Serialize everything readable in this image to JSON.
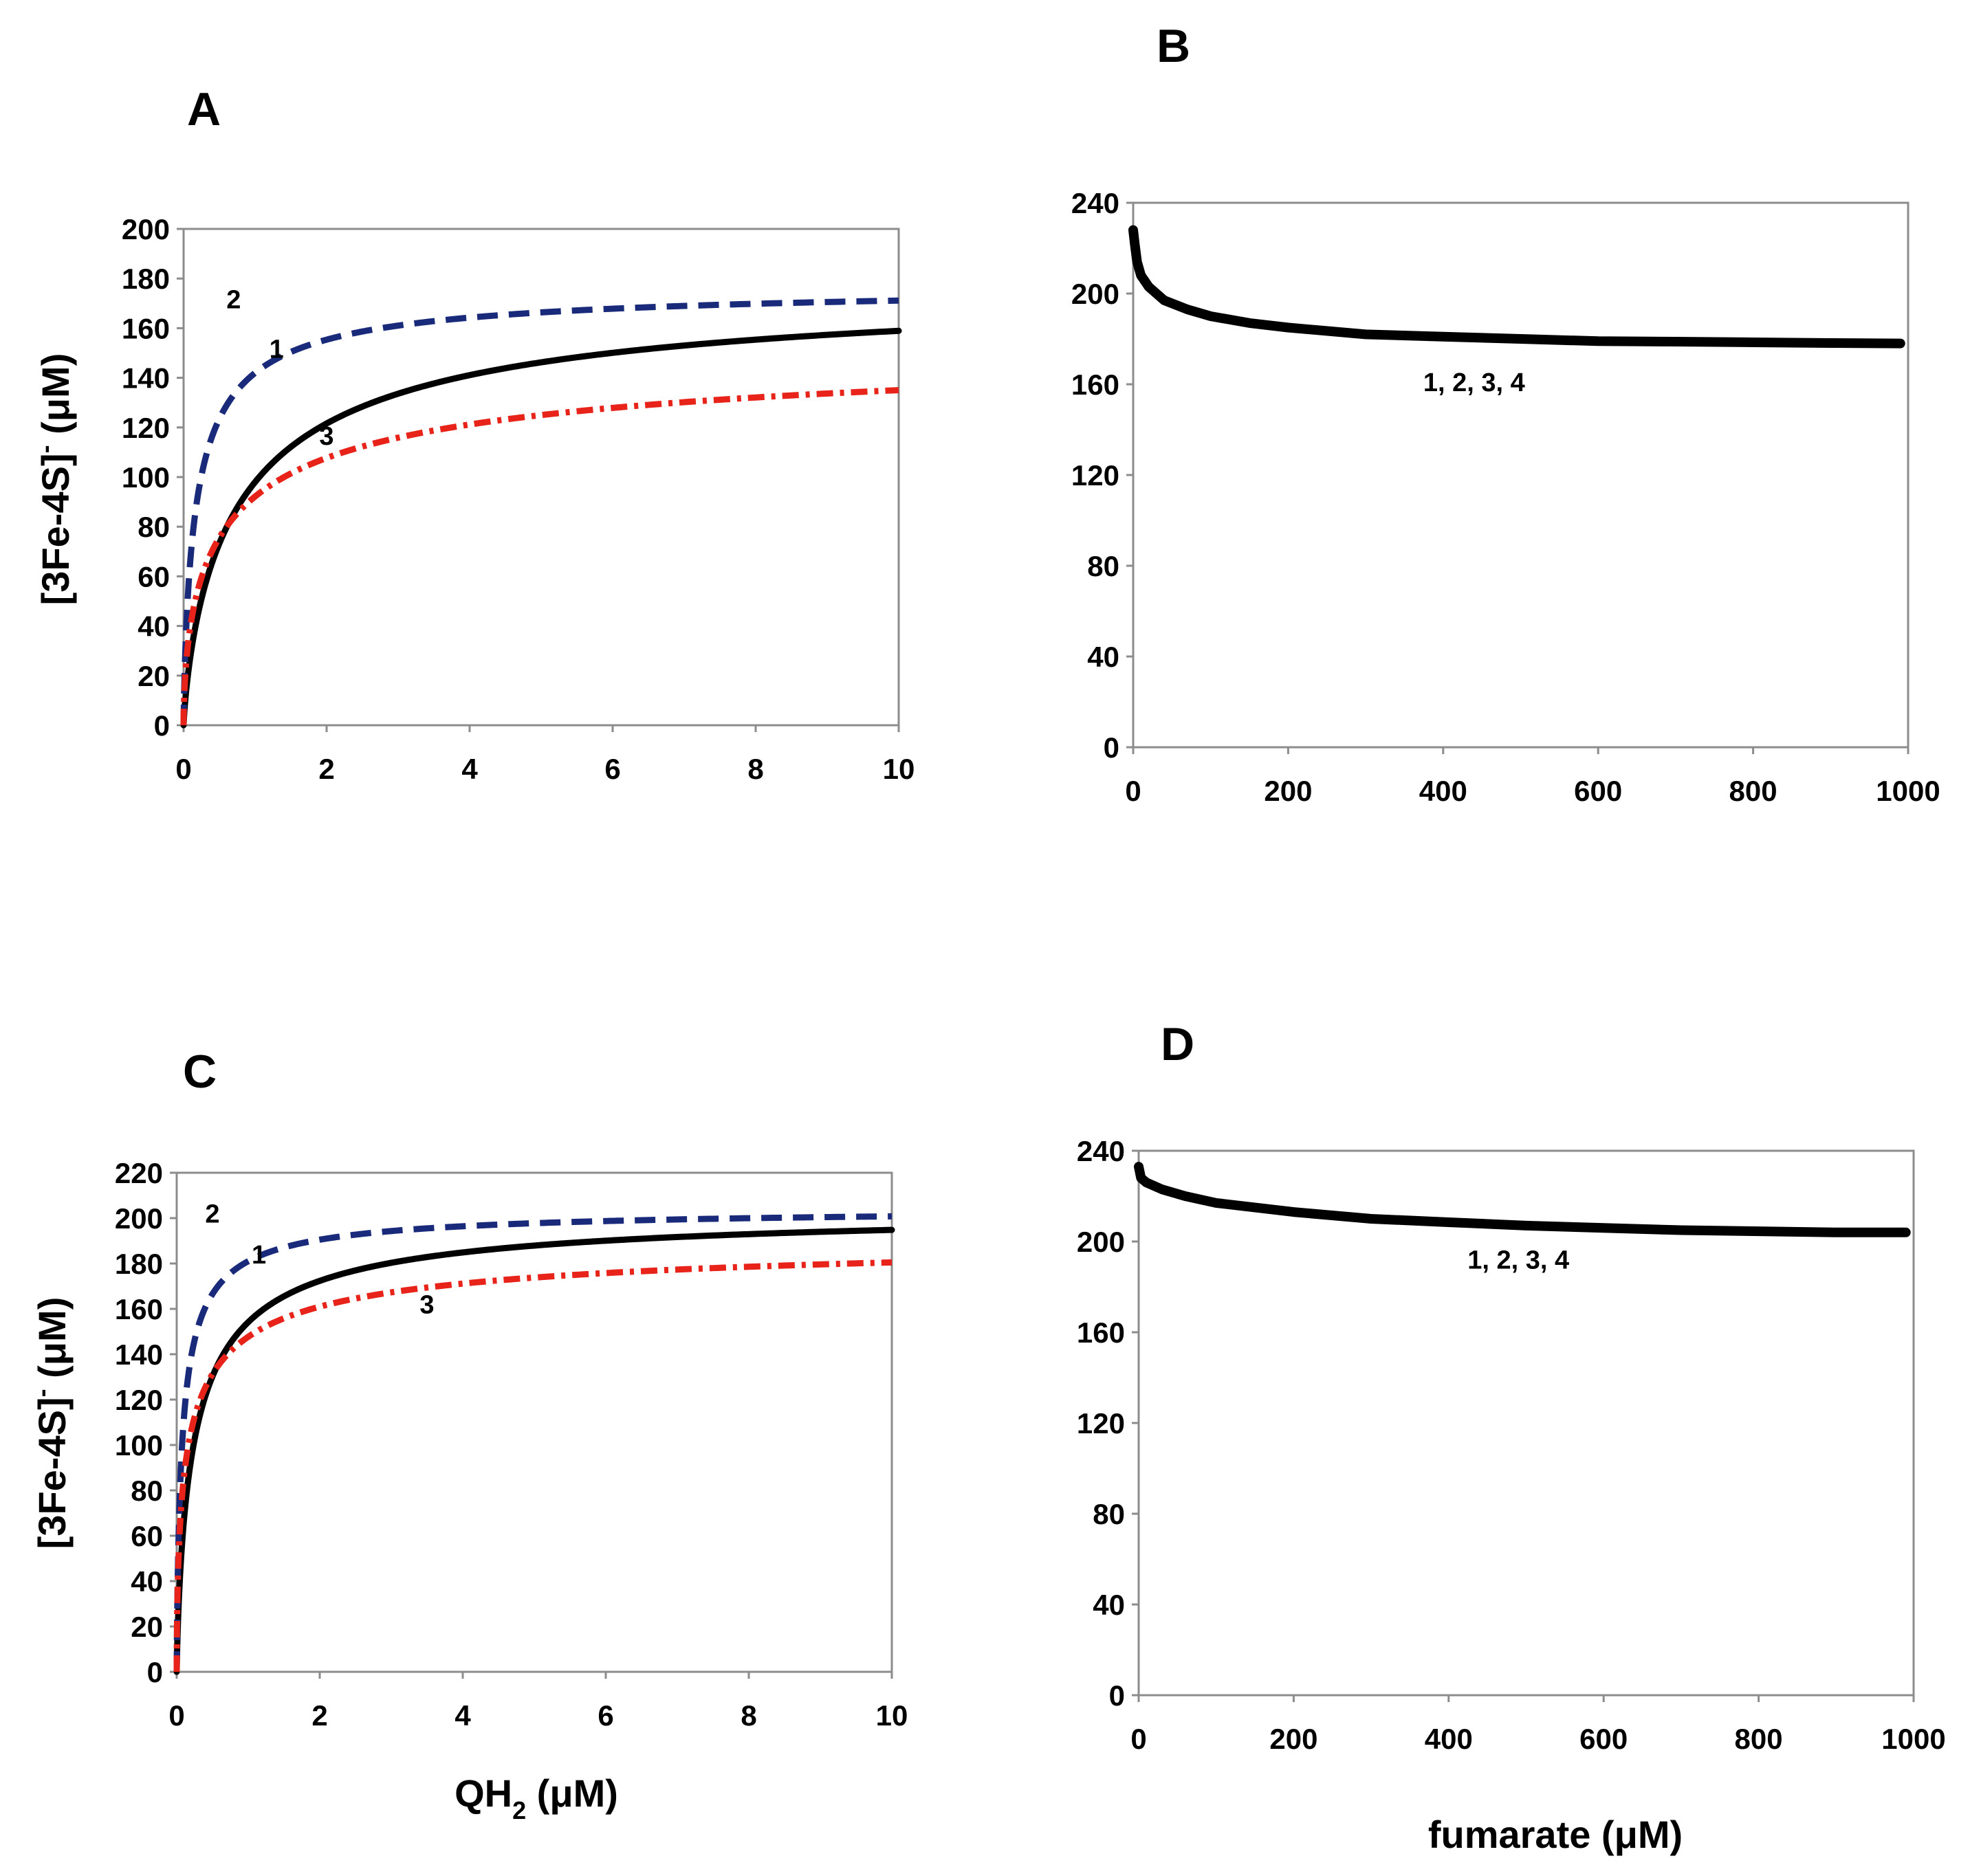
{
  "chart_data": [
    {
      "panel": "A",
      "type": "line",
      "xlim": [
        0,
        10
      ],
      "ylim": [
        0,
        200
      ],
      "xticks": [
        "0",
        "2",
        "4",
        "6",
        "8",
        "10"
      ],
      "yticks": [
        "0",
        "20",
        "40",
        "60",
        "80",
        "100",
        "120",
        "140",
        "160",
        "180",
        "200"
      ],
      "ylabel": "[3Fe-4S]",
      "ylabel_sup": "-",
      "ylabel_unit": " (μM)",
      "xlabel": "",
      "series": [
        {
          "name": "1",
          "color": "#000000",
          "dash": "solid",
          "ymax": 180,
          "K": 0.8,
          "n": 0.8,
          "label_at": [
            1.3,
            148
          ]
        },
        {
          "name": "2",
          "color": "#1a2a7a",
          "dash": "dash",
          "ymax": 178,
          "K": 0.18,
          "n": 0.8,
          "label_at": [
            0.7,
            168
          ]
        },
        {
          "name": "3",
          "color": "#e8231a",
          "dash": "dashdot",
          "ymax": 160,
          "K": 0.6,
          "n": 0.6,
          "label_at": [
            2.0,
            113
          ]
        }
      ]
    },
    {
      "panel": "B",
      "type": "line",
      "xlim": [
        0,
        1000
      ],
      "ylim": [
        0,
        240
      ],
      "xticks": [
        "0",
        "200",
        "400",
        "600",
        "800",
        "1000"
      ],
      "yticks": [
        "0",
        "40",
        "80",
        "120",
        "160",
        "200",
        "240"
      ],
      "xlabel": "",
      "ylabel": "",
      "series": [
        {
          "name": "1, 2, 3, 4",
          "color": "#000000",
          "dash": "solid",
          "points": [
            [
              0,
              228
            ],
            [
              2,
              222
            ],
            [
              5,
              214
            ],
            [
              10,
              208
            ],
            [
              20,
              203
            ],
            [
              40,
              197
            ],
            [
              70,
              193
            ],
            [
              100,
              190
            ],
            [
              150,
              187
            ],
            [
              200,
              185
            ],
            [
              300,
              182
            ],
            [
              400,
              181
            ],
            [
              500,
              180
            ],
            [
              600,
              179
            ],
            [
              700,
              178.8
            ],
            [
              800,
              178.5
            ],
            [
              900,
              178.2
            ],
            [
              990,
              178
            ]
          ],
          "label_at": [
            440,
            157
          ]
        }
      ]
    },
    {
      "panel": "C",
      "type": "line",
      "xlim": [
        0,
        10
      ],
      "ylim": [
        0,
        220
      ],
      "xticks": [
        "0",
        "2",
        "4",
        "6",
        "8",
        "10"
      ],
      "yticks": [
        "0",
        "20",
        "40",
        "60",
        "80",
        "100",
        "120",
        "140",
        "160",
        "180",
        "200",
        "220"
      ],
      "ylabel": "[3Fe-4S]",
      "ylabel_sup": "-",
      "ylabel_unit": " (μM)",
      "xlabel": "QH",
      "xlabel_sub": "2",
      "xlabel_unit": " (μM)",
      "series": [
        {
          "name": "1",
          "color": "#000000",
          "dash": "solid",
          "ymax": 205,
          "K": 0.25,
          "n": 0.8,
          "label_at": [
            1.15,
            180
          ]
        },
        {
          "name": "2",
          "color": "#1a2a7a",
          "dash": "dash",
          "ymax": 205,
          "K": 0.08,
          "n": 0.8,
          "label_at": [
            0.5,
            198
          ]
        },
        {
          "name": "3",
          "color": "#e8231a",
          "dash": "dashdot",
          "ymax": 195,
          "K": 0.15,
          "n": 0.6,
          "label_at": [
            3.5,
            158
          ]
        }
      ]
    },
    {
      "panel": "D",
      "type": "line",
      "xlim": [
        0,
        1000
      ],
      "ylim": [
        0,
        240
      ],
      "xticks": [
        "0",
        "200",
        "400",
        "600",
        "800",
        "1000"
      ],
      "yticks": [
        "0",
        "40",
        "80",
        "120",
        "160",
        "200",
        "240"
      ],
      "ylabel": "",
      "xlabel": "fumarate",
      "xlabel_unit": " (μM)",
      "series": [
        {
          "name": "1, 2, 3, 4",
          "color": "#000000",
          "dash": "solid",
          "points": [
            [
              0,
              233
            ],
            [
              3,
              228
            ],
            [
              10,
              226
            ],
            [
              30,
              223
            ],
            [
              60,
              220
            ],
            [
              100,
              217
            ],
            [
              200,
              213
            ],
            [
              300,
              210
            ],
            [
              400,
              208.5
            ],
            [
              500,
              207
            ],
            [
              600,
              206
            ],
            [
              700,
              205
            ],
            [
              800,
              204.5
            ],
            [
              900,
              204
            ],
            [
              990,
              204
            ]
          ],
          "label_at": [
            490,
            188
          ]
        }
      ]
    }
  ]
}
